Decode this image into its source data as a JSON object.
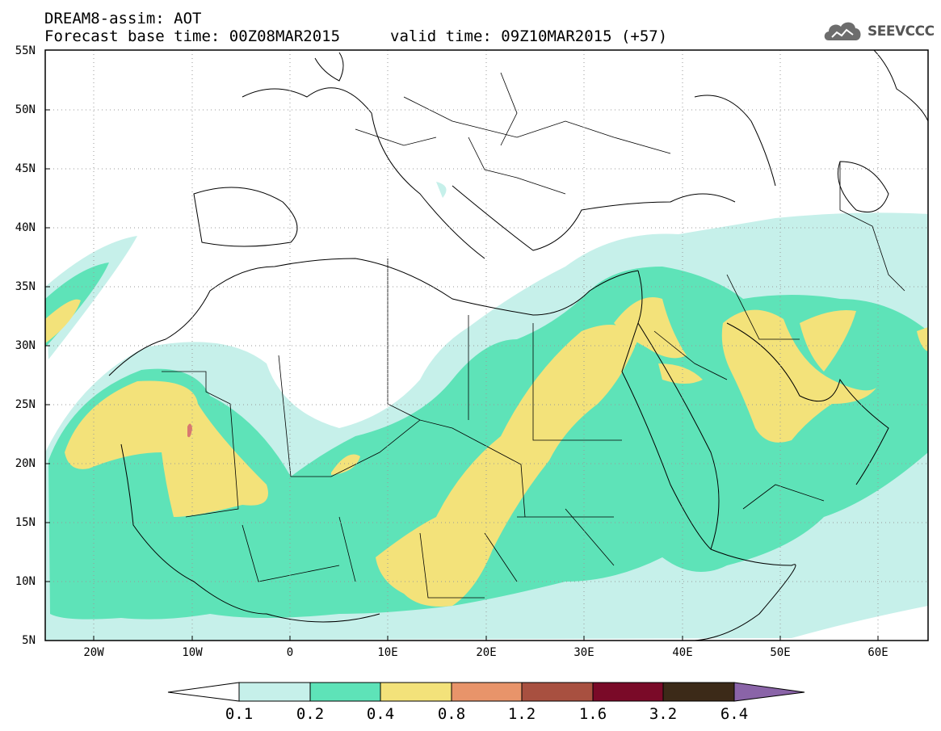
{
  "header": {
    "title_line1": "DREAM8-assim: AOT",
    "title_line2": "Forecast base time: 00Z08MAR2015",
    "valid_time": "valid time: 09Z10MAR2015 (+57)",
    "logo_text": "SEEVCCC"
  },
  "axes": {
    "lat_labels": [
      "55N",
      "50N",
      "45N",
      "40N",
      "35N",
      "30N",
      "25N",
      "20N",
      "15N",
      "10N",
      "5N"
    ],
    "lon_labels": [
      "20W",
      "10W",
      "0",
      "10E",
      "20E",
      "30E",
      "40E",
      "50E",
      "60E"
    ]
  },
  "colorbar": {
    "labels": [
      "0.1",
      "0.2",
      "0.4",
      "0.8",
      "1.2",
      "1.6",
      "3.2",
      "6.4"
    ],
    "colors": [
      "#ffffff",
      "#c6f0ea",
      "#5ee3b8",
      "#f3e27a",
      "#e8946a",
      "#a85040",
      "#7a0a28",
      "#3c2a18",
      "#8a64a8"
    ]
  },
  "map": {
    "variable": "AOT",
    "lon_range": [
      -25,
      65
    ],
    "lat_range": [
      5,
      55
    ],
    "colors": {
      "low": "#c6f0ea",
      "mid": "#5ee3b8",
      "high": "#f3e27a",
      "peak": "#d87870"
    }
  }
}
